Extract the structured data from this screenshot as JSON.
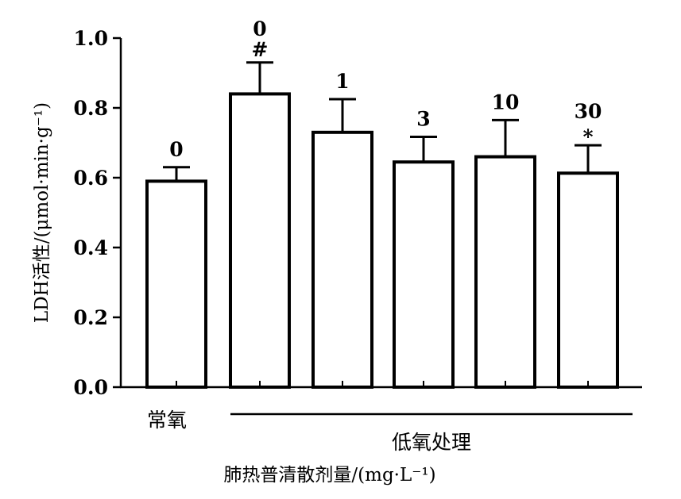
{
  "chart_data": {
    "type": "bar",
    "ylabel": "LDH活性/(μmol·min·g⁻¹)",
    "xlabel": "肺热普清散剂量/(mg·L⁻¹)",
    "ylim": [
      0,
      1.0
    ],
    "yticks": [
      "0.0",
      "0.2",
      "0.4",
      "0.6",
      "0.8",
      "1.0"
    ],
    "ytick_values": [
      0,
      0.2,
      0.4,
      0.6,
      0.8,
      1.0
    ],
    "categories": [
      "0",
      "0",
      "1",
      "3",
      "10",
      "30"
    ],
    "values": [
      0.59,
      0.84,
      0.73,
      0.645,
      0.66,
      0.613
    ],
    "errors": [
      0.04,
      0.09,
      0.095,
      0.072,
      0.105,
      0.08
    ],
    "significance": [
      "",
      "#",
      "",
      "",
      "",
      "*"
    ],
    "groups": [
      {
        "label": "常氧",
        "bars": [
          0
        ]
      },
      {
        "label": "低氧处理",
        "bars": [
          1,
          2,
          3,
          4,
          5
        ]
      }
    ],
    "grid": false
  }
}
